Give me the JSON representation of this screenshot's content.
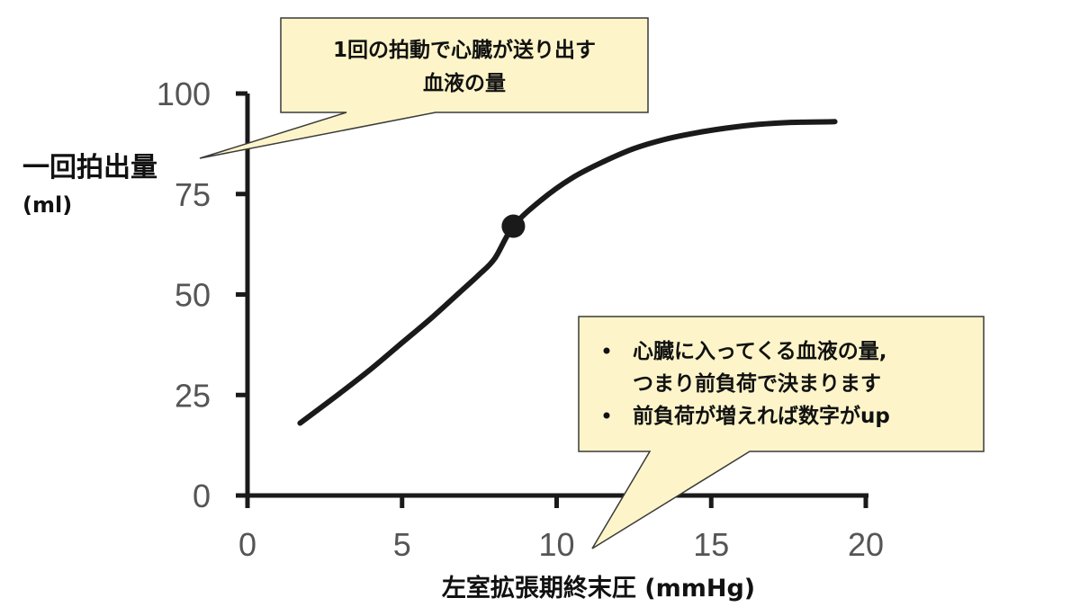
{
  "chart_data": {
    "type": "line",
    "xlabel": "左室拡張期終末圧 (mmHg)",
    "ylabel": "一回拍出量",
    "ylabel_unit": "(ml)",
    "xlim": [
      0,
      20
    ],
    "ylim": [
      0,
      100
    ],
    "x_ticks": [
      "0",
      "5",
      "10",
      "15",
      "20"
    ],
    "y_ticks": [
      "0",
      "25",
      "50",
      "75",
      "100"
    ],
    "grid": false,
    "series": [
      {
        "x": [
          1.7,
          3,
          4,
          5,
          6,
          7,
          7.5,
          8,
          8.6,
          9.5,
          10.5,
          11.5,
          12.5,
          13.5,
          14.5,
          15.5,
          16.5,
          17.5,
          19
        ],
        "y": [
          18,
          25.5,
          31.5,
          38,
          44.5,
          51.5,
          55,
          59,
          67,
          73.5,
          79,
          83,
          86.3,
          88.6,
          90.2,
          91.4,
          92.3,
          92.8,
          93
        ]
      }
    ],
    "marker": {
      "x": 8.6,
      "y": 67
    },
    "line_color": "#1a1a1a",
    "annotations": {
      "top": {
        "lines": [
          "1回の拍動で心臓が送り出す",
          "血液の量"
        ]
      },
      "bottom": {
        "bullets": [
          [
            "心臓に入ってくる血液の量,",
            "つまり前負荷で決まります"
          ],
          [
            "前負荷が増えれば数字がup"
          ]
        ]
      },
      "box_fill": "#fdf5c9",
      "box_stroke": "#3a3a3a"
    }
  }
}
